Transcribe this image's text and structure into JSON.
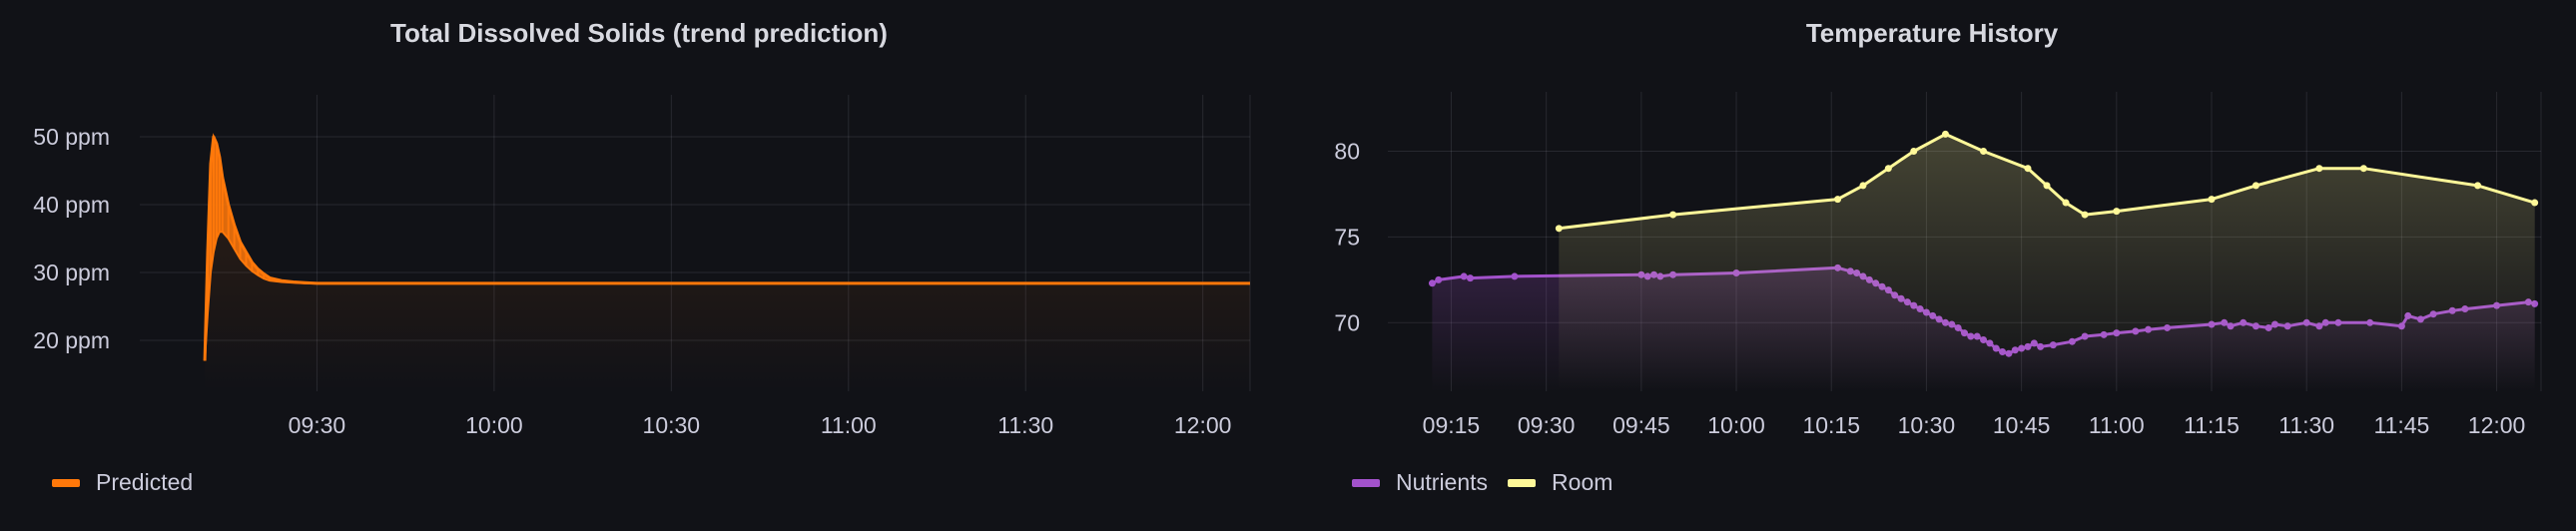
{
  "chart_data": [
    {
      "type": "area",
      "title": "Total Dissolved Solids (trend prediction)",
      "ylabel": "",
      "xlabel": "",
      "y_ticks": [
        "20 ppm",
        "30 ppm",
        "40 ppm",
        "50 ppm"
      ],
      "y_tick_values": [
        20,
        30,
        40,
        50
      ],
      "ylim": [
        12.5,
        55
      ],
      "x_ticks": [
        "09:30",
        "10:00",
        "10:30",
        "11:00",
        "11:30",
        "12:00"
      ],
      "x_tick_values": [
        "09:30",
        "10:00",
        "10:30",
        "11:00",
        "11:30",
        "12:00"
      ],
      "xlim": [
        "09:00",
        "12:08"
      ],
      "grid": true,
      "legend_position": "bottom-left",
      "series": [
        {
          "name": "Predicted",
          "color": "#ff780a",
          "x": [
            "09:11",
            "09:11.5",
            "09:12",
            "09:12.5",
            "09:13",
            "09:13.5",
            "09:14",
            "09:15",
            "09:16",
            "09:17",
            "09:18",
            "09:19",
            "09:20",
            "09:21",
            "09:22",
            "09:24",
            "09:26",
            "09:28",
            "09:30",
            "09:33",
            "09:40",
            "10:00",
            "10:30",
            "11:00",
            "11:30",
            "12:00",
            "12:08"
          ],
          "values": [
            17,
            33,
            46,
            50,
            49,
            47,
            44,
            40,
            37,
            34.5,
            33,
            31.5,
            30.5,
            29.8,
            29.2,
            28.8,
            28.6,
            28.5,
            28.4,
            28.4,
            28.4,
            28.4,
            28.4,
            28.4,
            28.4,
            28.4,
            28.4
          ],
          "envelope_low": [
            17,
            24,
            30,
            33,
            35,
            36,
            36,
            35,
            33.5,
            32,
            31,
            30.2,
            29.6,
            29.1,
            28.8,
            28.6,
            28.5,
            28.4,
            28.4,
            28.4,
            28.4,
            28.4,
            28.4,
            28.4,
            28.4,
            28.4,
            28.4
          ]
        }
      ]
    },
    {
      "type": "line",
      "title": "Temperature History",
      "ylabel": "",
      "xlabel": "",
      "y_ticks": [
        "70",
        "75",
        "80"
      ],
      "y_tick_values": [
        70,
        75,
        80
      ],
      "ylim": [
        66,
        83
      ],
      "x_ticks": [
        "09:15",
        "09:30",
        "09:45",
        "10:00",
        "10:15",
        "10:30",
        "10:45",
        "11:00",
        "11:15",
        "11:30",
        "11:45",
        "12:00"
      ],
      "x_tick_values": [
        "09:15",
        "09:30",
        "09:45",
        "10:00",
        "10:15",
        "10:30",
        "10:45",
        "11:00",
        "11:15",
        "11:30",
        "11:45",
        "12:00"
      ],
      "xlim": [
        "09:05",
        "12:07"
      ],
      "grid": true,
      "legend_position": "bottom-left",
      "series": [
        {
          "name": "Nutrients",
          "color": "#a352cc",
          "x": [
            "09:12",
            "09:13",
            "09:17",
            "09:18",
            "09:25",
            "09:45",
            "09:46",
            "09:47",
            "09:48",
            "09:50",
            "10:00",
            "10:16",
            "10:18",
            "10:19",
            "10:20",
            "10:21",
            "10:22",
            "10:23",
            "10:24",
            "10:25",
            "10:26",
            "10:27",
            "10:28",
            "10:29",
            "10:30",
            "10:31",
            "10:32",
            "10:33",
            "10:34",
            "10:35",
            "10:36",
            "10:37",
            "10:38",
            "10:39",
            "10:40",
            "10:41",
            "10:42",
            "10:43",
            "10:44",
            "10:45",
            "10:46",
            "10:47",
            "10:48",
            "10:50",
            "10:53",
            "10:55",
            "10:58",
            "11:00",
            "11:03",
            "11:05",
            "11:08",
            "11:15",
            "11:17",
            "11:18",
            "11:20",
            "11:22",
            "11:24",
            "11:25",
            "11:27",
            "11:30",
            "11:32",
            "11:33",
            "11:35",
            "11:40",
            "11:45",
            "11:46",
            "11:48",
            "11:50",
            "11:53",
            "11:55",
            "12:00",
            "12:05",
            "12:06"
          ],
          "values": [
            72.3,
            72.5,
            72.7,
            72.6,
            72.7,
            72.8,
            72.7,
            72.8,
            72.7,
            72.8,
            72.9,
            73.2,
            73.0,
            72.9,
            72.7,
            72.5,
            72.3,
            72.1,
            71.9,
            71.6,
            71.4,
            71.2,
            71.0,
            70.8,
            70.6,
            70.4,
            70.2,
            70.0,
            69.9,
            69.7,
            69.4,
            69.2,
            69.2,
            69.0,
            68.8,
            68.5,
            68.3,
            68.2,
            68.4,
            68.5,
            68.6,
            68.8,
            68.6,
            68.7,
            68.9,
            69.2,
            69.3,
            69.4,
            69.5,
            69.6,
            69.7,
            69.9,
            70.0,
            69.8,
            70.0,
            69.8,
            69.7,
            69.9,
            69.8,
            70.0,
            69.8,
            70.0,
            70.0,
            70.0,
            69.8,
            70.4,
            70.2,
            70.5,
            70.7,
            70.8,
            71.0,
            71.2,
            71.1
          ]
        },
        {
          "name": "Room",
          "color": "#fff899",
          "x": [
            "09:32",
            "09:50",
            "10:16",
            "10:20",
            "10:24",
            "10:28",
            "10:33",
            "10:39",
            "10:46",
            "10:49",
            "10:52",
            "10:55",
            "11:00",
            "11:15",
            "11:22",
            "11:32",
            "11:39",
            "11:57",
            "12:06"
          ],
          "values": [
            75.5,
            76.3,
            77.2,
            78.0,
            79.0,
            80.0,
            81.0,
            80.0,
            79.0,
            78.0,
            77.0,
            76.3,
            76.5,
            77.2,
            78.0,
            79.0,
            79.0,
            78.0,
            77.0
          ]
        }
      ]
    }
  ]
}
